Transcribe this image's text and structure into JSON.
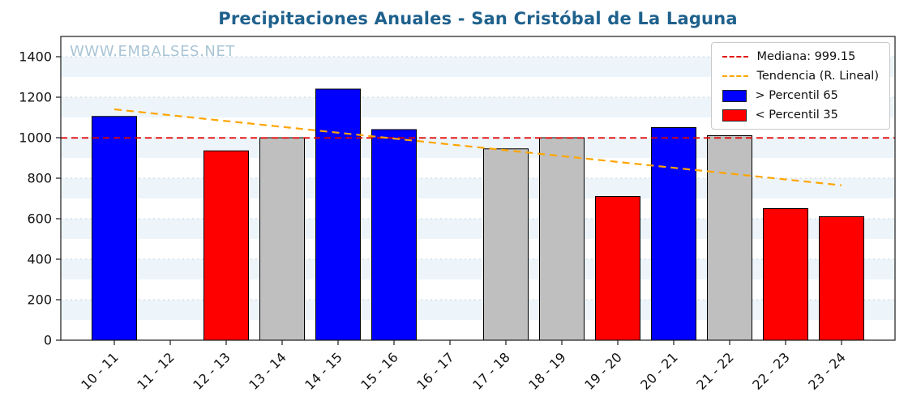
{
  "watermark": "WWW.EMBALSES.NET",
  "accent_colors": {
    "title": "#1f618d",
    "watermark": "#a9c5d6"
  },
  "chart_data": {
    "type": "bar",
    "title": "Precipitaciones Anuales - San Cristóbal de La Laguna",
    "categories": [
      "10 - 11",
      "11 - 12",
      "12 - 13",
      "13 - 14",
      "14 - 15",
      "15 - 16",
      "16 - 17",
      "17 - 18",
      "18 - 19",
      "19 - 20",
      "20 - 21",
      "21 - 22",
      "22 - 23",
      "23 - 24"
    ],
    "values": [
      1105,
      0,
      935,
      1000,
      1240,
      1040,
      0,
      945,
      1000,
      710,
      1050,
      1010,
      650,
      610
    ],
    "bar_colors": [
      "blue",
      null,
      "red",
      "gray",
      "blue",
      "blue",
      null,
      "gray",
      "gray",
      "red",
      "blue",
      "gray",
      "red",
      "red"
    ],
    "ylim": [
      0,
      1500
    ],
    "yticks": [
      0,
      200,
      400,
      600,
      800,
      1000,
      1200,
      1400
    ],
    "median": 999.15,
    "trend": {
      "start": 1140,
      "end": 765
    },
    "grid": true,
    "legend_position": "top-right",
    "colors": {
      "blue": "#0000ff",
      "red": "#ff0000",
      "gray": "#bfbfbf",
      "median": "#e00000",
      "trend": "#ffa500",
      "band": "#edf5fb",
      "gridline": "#c9d4da"
    },
    "legend": [
      {
        "type": "line",
        "color": "#e00000",
        "label": "Mediana: 999.15"
      },
      {
        "type": "line",
        "color": "#ffa500",
        "label": "Tendencia (R. Lineal)"
      },
      {
        "type": "patch",
        "color": "#0000ff",
        "label": "> Percentil 65"
      },
      {
        "type": "patch",
        "color": "#ff0000",
        "label": "< Percentil 35"
      }
    ]
  }
}
